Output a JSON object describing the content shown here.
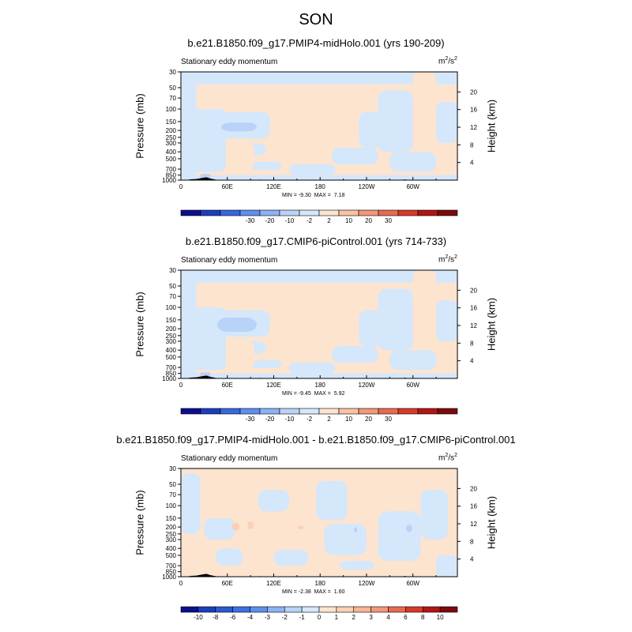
{
  "figure_title": "SON",
  "colors": {
    "ocean_base": "#fde4cf",
    "topography": "#000000"
  },
  "chart_data": [
    {
      "type": "heatmap",
      "title": "b.e21.B1850.f09_g17.PMIP4-midHolo.001 (yrs 190-209)",
      "left_string": "Stationary eddy momentum",
      "units": "m²/s²",
      "units_base": "m",
      "units_sup1": "2",
      "units_mid": "/s",
      "units_sup2": "2",
      "ylabel": "Pressure (mb)",
      "ylabel_right": "Height (km)",
      "x_ticks": [
        "0",
        "60E",
        "120E",
        "180",
        "120W",
        "60W"
      ],
      "x_tick_lon": [
        0,
        60,
        120,
        180,
        240,
        300
      ],
      "x_range": [
        0,
        357.5
      ],
      "y_ticks": [
        "30",
        "50",
        "70",
        "100",
        "150",
        "200",
        "250",
        "300",
        "400",
        "500",
        "700",
        "850",
        "1000"
      ],
      "y_tick_p": [
        30,
        50,
        70,
        100,
        150,
        200,
        250,
        300,
        400,
        500,
        700,
        850,
        1000
      ],
      "y_range_mb": [
        30,
        1000
      ],
      "y_scale": "log",
      "right_ticks": [
        "4",
        "8",
        "12",
        "16",
        "20"
      ],
      "right_tick_km": [
        4,
        8,
        12,
        16,
        20
      ],
      "min_label": "MIN = ",
      "min_value": "-9.30",
      "max_label": "MAX = ",
      "max_value": "7.18",
      "colorbar_labels": [
        "-30",
        "-20",
        "-10",
        "-2",
        "2",
        "10",
        "20",
        "30"
      ],
      "colorbar_colors": [
        "#0c0f8c",
        "#1a3fbd",
        "#3768dc",
        "#5e8fee",
        "#8db2f4",
        "#b9d3f8",
        "#d4e7fb",
        "#fde4cf",
        "#f8c2a3",
        "#f1977a",
        "#e86b50",
        "#d63a2c",
        "#b11516",
        "#7c0a0d"
      ],
      "field_levels": [
        {
          "region": "background",
          "value": "0 to 2"
        },
        {
          "region": "cyclonic patch near 200 mb, 60E-90E",
          "value": "-2 to -10"
        },
        {
          "region": "low-level patch near 850 mb, 30E",
          "value": "-2 to -10"
        }
      ]
    },
    {
      "type": "heatmap",
      "title": "b.e21.B1850.f09_g17.CMIP6-piControl.001 (yrs 714-733)",
      "left_string": "Stationary eddy momentum",
      "units": "m²/s²",
      "units_base": "m",
      "units_sup1": "2",
      "units_mid": "/s",
      "units_sup2": "2",
      "ylabel": "Pressure (mb)",
      "ylabel_right": "Height (km)",
      "x_ticks": [
        "0",
        "60E",
        "120E",
        "180",
        "120W",
        "60W"
      ],
      "x_tick_lon": [
        0,
        60,
        120,
        180,
        240,
        300
      ],
      "x_range": [
        0,
        357.5
      ],
      "y_ticks": [
        "30",
        "50",
        "70",
        "100",
        "150",
        "200",
        "250",
        "300",
        "400",
        "500",
        "700",
        "850",
        "1000"
      ],
      "y_tick_p": [
        30,
        50,
        70,
        100,
        150,
        200,
        250,
        300,
        400,
        500,
        700,
        850,
        1000
      ],
      "y_range_mb": [
        30,
        1000
      ],
      "y_scale": "log",
      "right_ticks": [
        "4",
        "8",
        "12",
        "16",
        "20"
      ],
      "right_tick_km": [
        4,
        8,
        12,
        16,
        20
      ],
      "min_label": "MIN = ",
      "min_value": "-9.45",
      "max_label": "MAX = ",
      "max_value": "5.92",
      "colorbar_labels": [
        "-30",
        "-20",
        "-10",
        "-2",
        "2",
        "10",
        "20",
        "30"
      ],
      "colorbar_colors": [
        "#0c0f8c",
        "#1a3fbd",
        "#3768dc",
        "#5e8fee",
        "#8db2f4",
        "#b9d3f8",
        "#d4e7fb",
        "#fde4cf",
        "#f8c2a3",
        "#f1977a",
        "#e86b50",
        "#d63a2c",
        "#b11516",
        "#7c0a0d"
      ],
      "field_levels": [
        {
          "region": "background",
          "value": "0 to 2"
        },
        {
          "region": "patch near 170 mb, 50E-95E",
          "value": "-2 to -10"
        },
        {
          "region": "low-level patch near 850 mb, 30E",
          "value": "-2 to -10"
        }
      ]
    },
    {
      "type": "heatmap",
      "title": "b.e21.B1850.f09_g17.PMIP4-midHolo.001 - b.e21.B1850.f09_g17.CMIP6-piControl.001",
      "left_string": "Stationary eddy momentum",
      "units": "m²/s²",
      "units_base": "m",
      "units_sup1": "2",
      "units_mid": "/s",
      "units_sup2": "2",
      "ylabel": "Pressure (mb)",
      "ylabel_right": "Height (km)",
      "x_ticks": [
        "0",
        "60E",
        "120E",
        "180",
        "120W",
        "60W"
      ],
      "x_tick_lon": [
        0,
        60,
        120,
        180,
        240,
        300
      ],
      "x_range": [
        0,
        357.5
      ],
      "y_ticks": [
        "30",
        "50",
        "70",
        "100",
        "150",
        "200",
        "250",
        "300",
        "400",
        "500",
        "700",
        "850",
        "1000"
      ],
      "y_tick_p": [
        30,
        50,
        70,
        100,
        150,
        200,
        250,
        300,
        400,
        500,
        700,
        850,
        1000
      ],
      "y_range_mb": [
        30,
        1000
      ],
      "y_scale": "log",
      "right_ticks": [
        "4",
        "8",
        "12",
        "16",
        "20"
      ],
      "right_tick_km": [
        4,
        8,
        12,
        16,
        20
      ],
      "min_label": "MIN = ",
      "min_value": "-2.38",
      "max_label": "MAX = ",
      "max_value": "1.60",
      "colorbar_labels": [
        "-10",
        "-8",
        "-6",
        "-4",
        "-3",
        "-2",
        "-1",
        "0",
        "1",
        "2",
        "3",
        "4",
        "6",
        "8",
        "10"
      ],
      "colorbar_colors": [
        "#0c0f8c",
        "#1a3fbd",
        "#2c59d3",
        "#3d70e2",
        "#5e8fee",
        "#8db2f4",
        "#b9d3f8",
        "#d4e7fb",
        "#fde4cf",
        "#fbd0b6",
        "#f8b596",
        "#f1977a",
        "#e86b50",
        "#d63a2c",
        "#b11516",
        "#7c0a0d"
      ],
      "field_levels": [
        {
          "region": "background",
          "value": "0 to 1"
        },
        {
          "region": "small patches near 200 mb, 70E-160E",
          "value": "1 to 2"
        },
        {
          "region": "patches near 200 mb, 225E and 295E",
          "value": "-1 to -2"
        }
      ]
    }
  ]
}
